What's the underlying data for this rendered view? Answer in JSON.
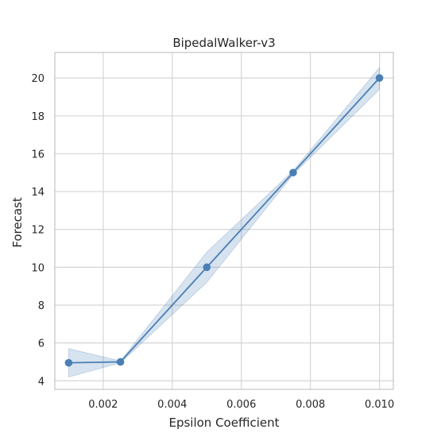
{
  "chart_data": {
    "type": "line",
    "title": "BipedalWalker-v3",
    "xlabel": "Epsilon Coefficient",
    "ylabel": "Forecast",
    "xlim": [
      0.0006,
      0.0104
    ],
    "ylim": [
      3.55,
      21.35
    ],
    "x_ticks": [
      0.002,
      0.004,
      0.006,
      0.008,
      0.01
    ],
    "x_tick_labels": [
      "0.002",
      "0.004",
      "0.006",
      "0.008",
      "0.010"
    ],
    "y_ticks": [
      4,
      6,
      8,
      10,
      12,
      14,
      16,
      18,
      20
    ],
    "y_tick_labels": [
      "4",
      "6",
      "8",
      "10",
      "12",
      "14",
      "16",
      "18",
      "20"
    ],
    "grid": true,
    "series": [
      {
        "x": [
          0.001,
          0.0025,
          0.005,
          0.0075,
          0.01
        ],
        "y": [
          4.95,
          5.0,
          10.0,
          15.0,
          20.0
        ],
        "ci_lower": [
          4.2,
          4.95,
          9.2,
          14.9,
          19.4
        ],
        "ci_upper": [
          5.7,
          5.05,
          10.8,
          15.1,
          20.55
        ]
      }
    ],
    "colors": {
      "line": "#4a7fb5",
      "marker": "#4a7fb5",
      "band": "#4a7fb5",
      "grid": "#d5d5d5",
      "spine": "#c8c8c8"
    }
  }
}
